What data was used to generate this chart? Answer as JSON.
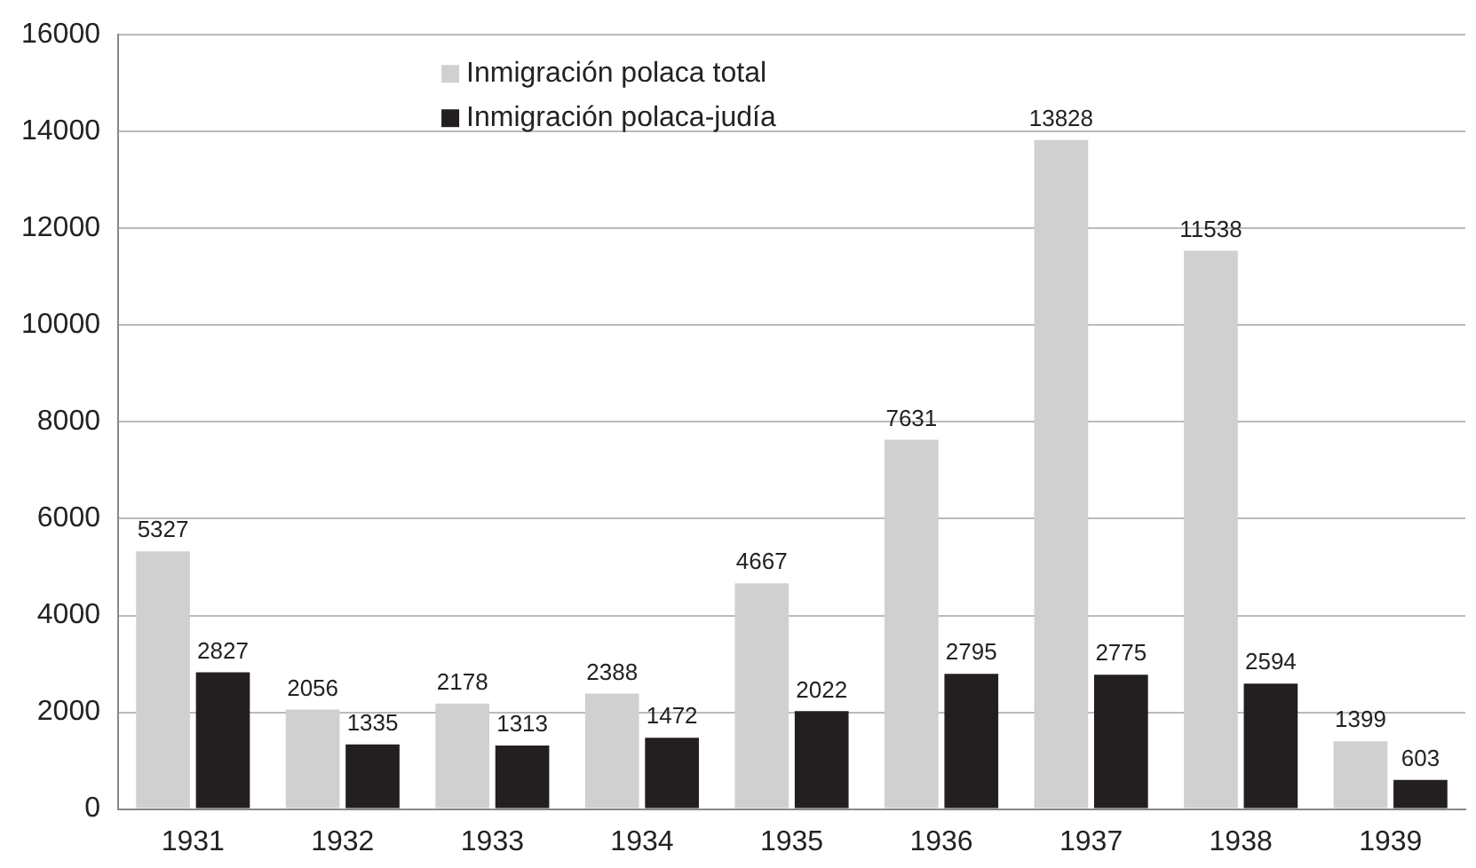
{
  "chart_data": {
    "type": "bar",
    "categories": [
      "1931",
      "1932",
      "1933",
      "1934",
      "1935",
      "1936",
      "1937",
      "1938",
      "1939"
    ],
    "series": [
      {
        "name": "Inmigración polaca total",
        "color": "#d0d0d0",
        "values": [
          5327,
          2056,
          2178,
          2388,
          4667,
          7631,
          13828,
          11538,
          1399
        ]
      },
      {
        "name": "Inmigración polaca-judía",
        "color": "#231f20",
        "values": [
          2827,
          1335,
          1313,
          1472,
          2022,
          2795,
          2775,
          2594,
          603
        ]
      }
    ],
    "ylim": [
      0,
      16000
    ],
    "yticks": [
      0,
      2000,
      4000,
      6000,
      8000,
      10000,
      12000,
      14000,
      16000
    ],
    "grid": "y",
    "legend": "top",
    "data_labels": true
  }
}
